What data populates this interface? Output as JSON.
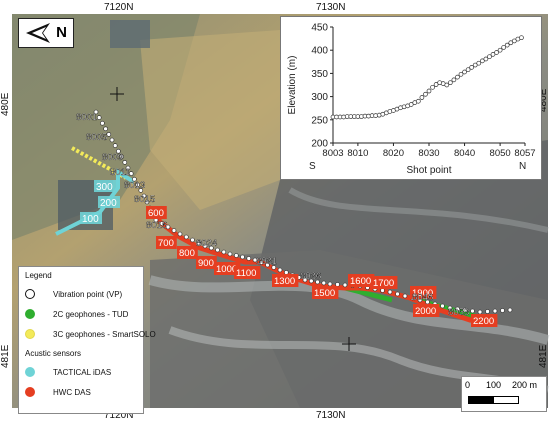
{
  "axes": {
    "top_labels": [
      "7120N",
      "7130N"
    ],
    "bottom_labels": [
      "7120N",
      "7130N"
    ],
    "left_labels": [
      "480E",
      "481E"
    ]
  },
  "north": "N",
  "vp_labels": [
    "8001",
    "8005",
    "8009",
    "8011",
    "8013",
    "8015",
    "8016",
    "8024",
    "8031",
    "8036",
    "8046",
    "8053"
  ],
  "tactical_labels": [
    "100",
    "200",
    "300"
  ],
  "hwc_labels": [
    "600",
    "700",
    "800",
    "900",
    "1000",
    "1100",
    "1300",
    "1500",
    "1600",
    "1700",
    "1900",
    "2000",
    "2200"
  ],
  "colors": {
    "tud": "#2fae2f",
    "smartsolo": "#f3ea5a",
    "tactical": "#6fd3d6",
    "hwc": "#e53e21",
    "vp": "#ffffff"
  },
  "legend": {
    "title": "Legend",
    "items": [
      "Vibration point (VP)",
      "2C geophones - TUD",
      "3C geophones - SmartSOLO"
    ],
    "subtitle": "Acustic sensors",
    "sensors": [
      "TACTICAL iDAS",
      "HWC DAS"
    ]
  },
  "scale": {
    "ticks": [
      "0",
      "100",
      "200 m"
    ]
  },
  "chart_data": {
    "type": "scatter",
    "ylabel": "Elevation (m)",
    "xlabel": "Shot point",
    "x_ticks": [
      "8003",
      "8010",
      "8020",
      "8030",
      "8040",
      "8050",
      "8057"
    ],
    "y_ticks": [
      200,
      250,
      300,
      350,
      400,
      450
    ],
    "ylim": [
      200,
      450
    ],
    "xlim": [
      8003,
      8057
    ],
    "corner_left": "S",
    "corner_right": "N",
    "x": [
      8003,
      8004,
      8005,
      8006,
      8007,
      8008,
      8009,
      8010,
      8011,
      8012,
      8013,
      8014,
      8015,
      8016,
      8017,
      8018,
      8019,
      8020,
      8021,
      8022,
      8023,
      8024,
      8025,
      8026,
      8027,
      8028,
      8029,
      8030,
      8031,
      8032,
      8033,
      8034,
      8035,
      8036,
      8037,
      8038,
      8039,
      8040,
      8041,
      8042,
      8043,
      8044,
      8045,
      8046,
      8047,
      8048,
      8049,
      8050,
      8051,
      8052,
      8053,
      8054,
      8055,
      8056
    ],
    "y": [
      256,
      256,
      256,
      256,
      257,
      257,
      257,
      257,
      257,
      258,
      258,
      259,
      259,
      260,
      262,
      265,
      268,
      270,
      273,
      276,
      278,
      280,
      283,
      287,
      290,
      298,
      305,
      312,
      320,
      326,
      330,
      328,
      325,
      330,
      336,
      342,
      348,
      353,
      358,
      363,
      368,
      372,
      377,
      381,
      386,
      391,
      395,
      400,
      406,
      411,
      416,
      420,
      424,
      427
    ]
  }
}
